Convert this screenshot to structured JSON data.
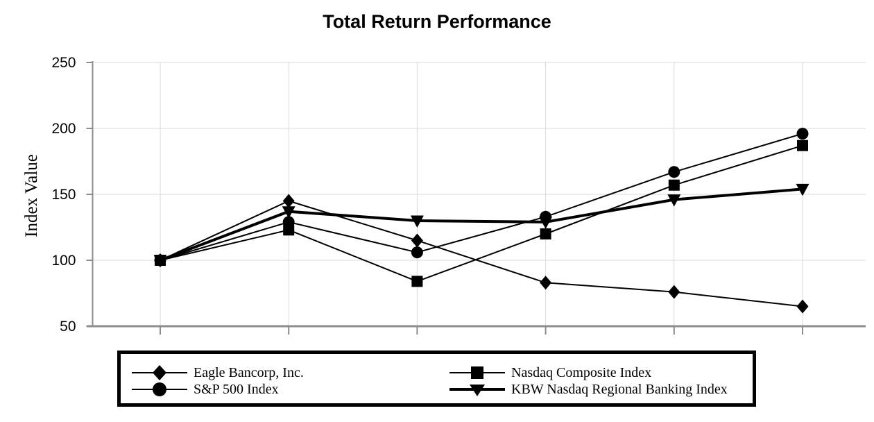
{
  "chart_data": {
    "type": "line",
    "title": "Total Return Performance",
    "xlabel": "",
    "ylabel": "Index Value",
    "ylim": [
      50,
      250
    ],
    "y_ticks": [
      250,
      200,
      150,
      100,
      50
    ],
    "x_ticks_count": 6,
    "x_tick_labels": [
      "",
      "",
      "",
      "",
      "",
      ""
    ],
    "grid": true,
    "legend_position": "bottom-box",
    "series": [
      {
        "name": "Eagle Bancorp, Inc.",
        "marker": "diamond",
        "line": "thin",
        "values": [
          100,
          145,
          115,
          83,
          76,
          65
        ]
      },
      {
        "name": "S&P 500 Index",
        "marker": "circle",
        "line": "thin",
        "values": [
          100,
          129,
          106,
          133,
          167,
          196
        ]
      },
      {
        "name": "Nasdaq Composite Index",
        "marker": "square",
        "line": "thin",
        "values": [
          100,
          123,
          84,
          120,
          157,
          187
        ]
      },
      {
        "name": "KBW Nasdaq Regional Banking Index",
        "marker": "triangle-down",
        "line": "thick",
        "values": [
          100,
          137,
          130,
          129,
          146,
          154
        ]
      }
    ],
    "colors": {
      "series": "#000000",
      "gridline": "#d9d9d9",
      "axis": "#8c8c8c",
      "text": "#000000",
      "background": "#ffffff"
    }
  }
}
